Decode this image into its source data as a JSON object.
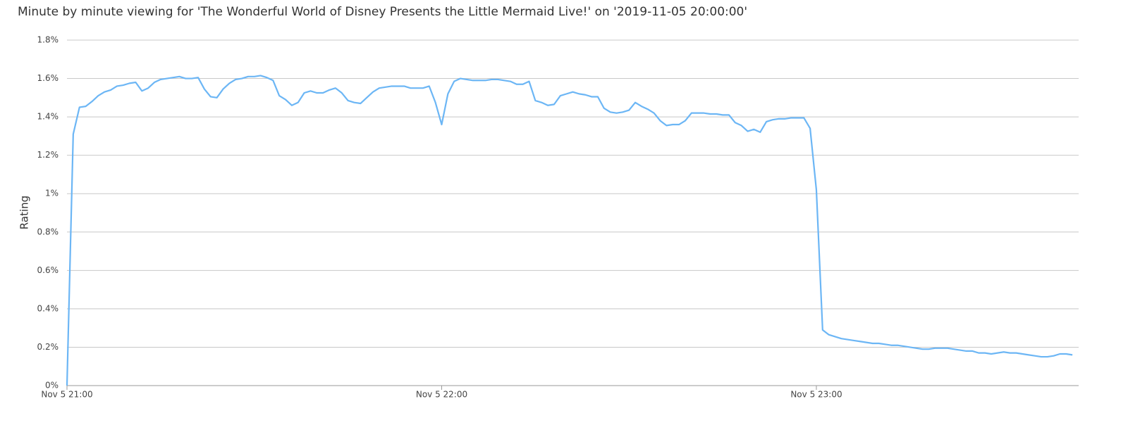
{
  "chart_data": {
    "type": "line",
    "title": "Minute by minute viewing for 'The Wonderful World of Disney Presents the Little Mermaid Live!' on '2019-11-05 20:00:00'",
    "ylabel": "Rating",
    "color": "#6cb6f5",
    "grid": true,
    "xlim": [
      "Nov 5 21:00",
      "Nov 5 23:42"
    ],
    "xticks": [
      "Nov 5 21:00",
      "Nov 5 22:00",
      "Nov 5 23:00"
    ],
    "ylim": [
      0,
      1.8
    ],
    "yticks": [
      {
        "value": 0,
        "label": "0%"
      },
      {
        "value": 0.2,
        "label": "0.2%"
      },
      {
        "value": 0.4,
        "label": "0.4%"
      },
      {
        "value": 0.6,
        "label": "0.6%"
      },
      {
        "value": 0.8,
        "label": "0.8%"
      },
      {
        "value": 1,
        "label": "1%"
      },
      {
        "value": 1.2,
        "label": "1.2%"
      },
      {
        "value": 1.4,
        "label": "1.4%"
      },
      {
        "value": 1.6,
        "label": "1.6%"
      },
      {
        "value": 1.8,
        "label": "1.8%"
      }
    ],
    "x": [
      "Nov 5 21:00",
      "Nov 5 21:01",
      "Nov 5 21:02",
      "Nov 5 21:03",
      "Nov 5 21:04",
      "Nov 5 21:05",
      "Nov 5 21:06",
      "Nov 5 21:07",
      "Nov 5 21:08",
      "Nov 5 21:09",
      "Nov 5 21:10",
      "Nov 5 21:11",
      "Nov 5 21:12",
      "Nov 5 21:13",
      "Nov 5 21:14",
      "Nov 5 21:15",
      "Nov 5 21:16",
      "Nov 5 21:17",
      "Nov 5 21:18",
      "Nov 5 21:19",
      "Nov 5 21:20",
      "Nov 5 21:21",
      "Nov 5 21:22",
      "Nov 5 21:23",
      "Nov 5 21:24",
      "Nov 5 21:25",
      "Nov 5 21:26",
      "Nov 5 21:27",
      "Nov 5 21:28",
      "Nov 5 21:29",
      "Nov 5 21:30",
      "Nov 5 21:31",
      "Nov 5 21:32",
      "Nov 5 21:33",
      "Nov 5 21:34",
      "Nov 5 21:35",
      "Nov 5 21:36",
      "Nov 5 21:37",
      "Nov 5 21:38",
      "Nov 5 21:39",
      "Nov 5 21:40",
      "Nov 5 21:41",
      "Nov 5 21:42",
      "Nov 5 21:43",
      "Nov 5 21:44",
      "Nov 5 21:45",
      "Nov 5 21:46",
      "Nov 5 21:47",
      "Nov 5 21:48",
      "Nov 5 21:49",
      "Nov 5 21:50",
      "Nov 5 21:51",
      "Nov 5 21:52",
      "Nov 5 21:53",
      "Nov 5 21:54",
      "Nov 5 21:55",
      "Nov 5 21:56",
      "Nov 5 21:57",
      "Nov 5 21:58",
      "Nov 5 21:59",
      "Nov 5 22:00",
      "Nov 5 22:01",
      "Nov 5 22:02",
      "Nov 5 22:03",
      "Nov 5 22:04",
      "Nov 5 22:05",
      "Nov 5 22:06",
      "Nov 5 22:07",
      "Nov 5 22:08",
      "Nov 5 22:09",
      "Nov 5 22:10",
      "Nov 5 22:11",
      "Nov 5 22:12",
      "Nov 5 22:13",
      "Nov 5 22:14",
      "Nov 5 22:15",
      "Nov 5 22:16",
      "Nov 5 22:17",
      "Nov 5 22:18",
      "Nov 5 22:19",
      "Nov 5 22:20",
      "Nov 5 22:21",
      "Nov 5 22:22",
      "Nov 5 22:23",
      "Nov 5 22:24",
      "Nov 5 22:25",
      "Nov 5 22:26",
      "Nov 5 22:27",
      "Nov 5 22:28",
      "Nov 5 22:29",
      "Nov 5 22:30",
      "Nov 5 22:31",
      "Nov 5 22:32",
      "Nov 5 22:33",
      "Nov 5 22:34",
      "Nov 5 22:35",
      "Nov 5 22:36",
      "Nov 5 22:37",
      "Nov 5 22:38",
      "Nov 5 22:39",
      "Nov 5 22:40",
      "Nov 5 22:41",
      "Nov 5 22:42",
      "Nov 5 22:43",
      "Nov 5 22:44",
      "Nov 5 22:45",
      "Nov 5 22:46",
      "Nov 5 22:47",
      "Nov 5 22:48",
      "Nov 5 22:49",
      "Nov 5 22:50",
      "Nov 5 22:51",
      "Nov 5 22:52",
      "Nov 5 22:53",
      "Nov 5 22:54",
      "Nov 5 22:55",
      "Nov 5 22:56",
      "Nov 5 22:57",
      "Nov 5 22:58",
      "Nov 5 22:59",
      "Nov 5 23:00",
      "Nov 5 23:01",
      "Nov 5 23:02",
      "Nov 5 23:03",
      "Nov 5 23:04",
      "Nov 5 23:05",
      "Nov 5 23:06",
      "Nov 5 23:07",
      "Nov 5 23:08",
      "Nov 5 23:09",
      "Nov 5 23:10",
      "Nov 5 23:11",
      "Nov 5 23:12",
      "Nov 5 23:13",
      "Nov 5 23:14",
      "Nov 5 23:15",
      "Nov 5 23:16",
      "Nov 5 23:17",
      "Nov 5 23:18",
      "Nov 5 23:19",
      "Nov 5 23:20",
      "Nov 5 23:21",
      "Nov 5 23:22",
      "Nov 5 23:23",
      "Nov 5 23:24",
      "Nov 5 23:25",
      "Nov 5 23:26",
      "Nov 5 23:27",
      "Nov 5 23:28",
      "Nov 5 23:29",
      "Nov 5 23:30",
      "Nov 5 23:31",
      "Nov 5 23:32",
      "Nov 5 23:33",
      "Nov 5 23:34",
      "Nov 5 23:35",
      "Nov 5 23:36",
      "Nov 5 23:37",
      "Nov 5 23:38",
      "Nov 5 23:39",
      "Nov 5 23:40",
      "Nov 5 23:41"
    ],
    "values": [
      0,
      1.31,
      1.45,
      1.455,
      1.48,
      1.51,
      1.53,
      1.54,
      1.56,
      1.565,
      1.575,
      1.58,
      1.535,
      1.55,
      1.58,
      1.595,
      1.6,
      1.605,
      1.61,
      1.6,
      1.6,
      1.605,
      1.545,
      1.505,
      1.5,
      1.545,
      1.575,
      1.595,
      1.6,
      1.61,
      1.61,
      1.615,
      1.605,
      1.59,
      1.51,
      1.49,
      1.46,
      1.475,
      1.525,
      1.535,
      1.525,
      1.525,
      1.54,
      1.55,
      1.525,
      1.485,
      1.475,
      1.47,
      1.5,
      1.53,
      1.55,
      1.555,
      1.56,
      1.56,
      1.56,
      1.55,
      1.55,
      1.55,
      1.56,
      1.475,
      1.36,
      1.52,
      1.585,
      1.6,
      1.595,
      1.59,
      1.59,
      1.59,
      1.595,
      1.595,
      1.59,
      1.585,
      1.57,
      1.57,
      1.585,
      1.485,
      1.475,
      1.46,
      1.465,
      1.51,
      1.52,
      1.53,
      1.52,
      1.515,
      1.505,
      1.505,
      1.445,
      1.425,
      1.42,
      1.425,
      1.435,
      1.475,
      1.455,
      1.44,
      1.42,
      1.38,
      1.355,
      1.36,
      1.36,
      1.38,
      1.42,
      1.42,
      1.42,
      1.415,
      1.415,
      1.41,
      1.41,
      1.37,
      1.355,
      1.325,
      1.335,
      1.32,
      1.375,
      1.385,
      1.39,
      1.39,
      1.395,
      1.395,
      1.395,
      1.34,
      1.02,
      0.29,
      0.265,
      0.255,
      0.245,
      0.24,
      0.235,
      0.23,
      0.225,
      0.22,
      0.22,
      0.215,
      0.21,
      0.21,
      0.205,
      0.2,
      0.195,
      0.19,
      0.19,
      0.195,
      0.195,
      0.195,
      0.19,
      0.185,
      0.18,
      0.18,
      0.17,
      0.17,
      0.165,
      0.17,
      0.175,
      0.17,
      0.17,
      0.165,
      0.16,
      0.155,
      0.15,
      0.15,
      0.155,
      0.165,
      0.165,
      0.16
    ]
  }
}
